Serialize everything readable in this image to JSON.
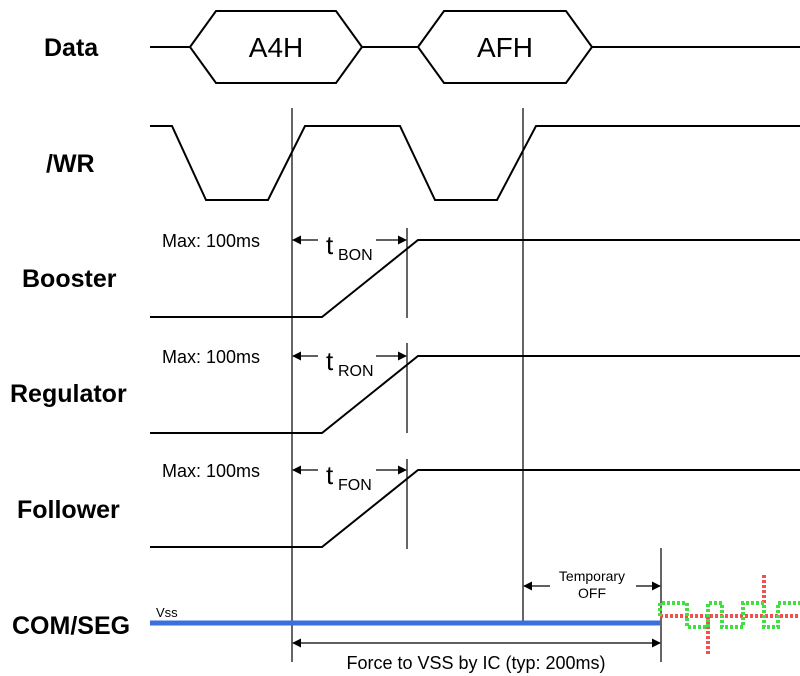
{
  "signals": {
    "data": "Data",
    "wr": "/WR",
    "booster": "Booster",
    "regulator": "Regulator",
    "follower": "Follower",
    "comseg": "COM/SEG"
  },
  "data_bus": {
    "value_1": "A4H",
    "value_2": "AFH"
  },
  "timing": {
    "booster": {
      "max": "Max: 100ms",
      "t": "t",
      "sub": "BON"
    },
    "regulator": {
      "max": "Max: 100ms",
      "t": "t",
      "sub": "RON"
    },
    "follower": {
      "max": "Max: 100ms",
      "t": "t",
      "sub": "FON"
    }
  },
  "comseg": {
    "vss": "Vss",
    "temporary_line1": "Temporary",
    "temporary_line2": "OFF",
    "force": "Force to VSS by IC (typ: 200ms)"
  },
  "colors": {
    "vss_line": "#3b6fe0",
    "output_red": "#f05050",
    "output_green": "#40e040"
  }
}
